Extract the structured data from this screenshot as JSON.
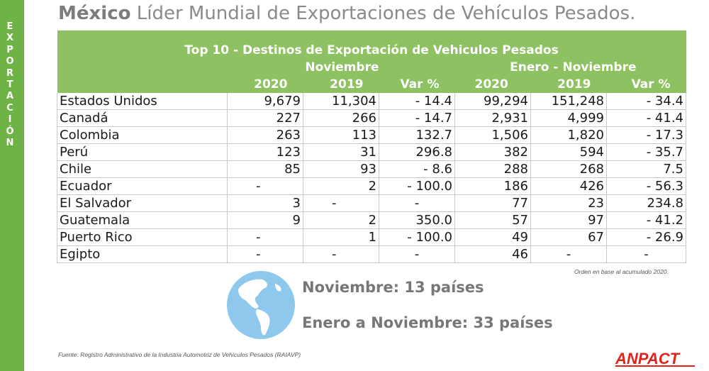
{
  "sidebar": {
    "letters": [
      "E",
      "X",
      "P",
      "O",
      "R",
      "T",
      "A",
      "C",
      "I",
      "Ó",
      "N"
    ]
  },
  "title": {
    "bold": "México",
    "rest": " Líder Mundial de Exportaciones de Vehículos Pesados."
  },
  "table": {
    "title": "Top 10 - Destinos de Exportación de Vehiculos Pesados",
    "group_nov": "Noviembre",
    "group_ytd": "Enero - Noviembre",
    "columns": [
      "2020",
      "2019",
      "Var %",
      "2020",
      "2019",
      "Var %"
    ],
    "rows": [
      [
        "Estados Unidos",
        "9,679",
        "11,304",
        "- 14.4",
        "99,294",
        "151,248",
        "- 34.4"
      ],
      [
        "Canadá",
        "227",
        "266",
        "- 14.7",
        "2,931",
        "4,999",
        "- 41.4"
      ],
      [
        "Colombia",
        "263",
        "113",
        "132.7",
        "1,506",
        "1,820",
        "- 17.3"
      ],
      [
        "Perú",
        "123",
        "31",
        "296.8",
        "382",
        "594",
        "- 35.7"
      ],
      [
        "Chile",
        "85",
        "93",
        "- 8.6",
        "288",
        "268",
        "7.5"
      ],
      [
        "Ecuador",
        "-",
        "2",
        "- 100.0",
        "186",
        "426",
        "- 56.3"
      ],
      [
        "El Salvador",
        "3",
        "-",
        "-",
        "77",
        "23",
        "234.8"
      ],
      [
        "Guatemala",
        "9",
        "2",
        "350.0",
        "57",
        "97",
        "- 41.2"
      ],
      [
        "Puerto Rico",
        "-",
        "1",
        "- 100.0",
        "49",
        "67",
        "- 26.9"
      ],
      [
        "Egipto",
        "-",
        "-",
        "-",
        "46",
        "-",
        "-"
      ]
    ]
  },
  "note": "Orden en base al acumulado 2020.",
  "stats": {
    "nov": "Noviembre: 13 países",
    "ytd": "Enero a Noviembre: 33 países"
  },
  "source": "Fuente: Registro Administrativo de la Industria Automotriz de Vehículos Pesados (RAIAVP)",
  "logo": {
    "text": "ANPACT"
  },
  "colors": {
    "green_dark": "#6fb245",
    "green_header": "#8dc162",
    "globe": "#8ec8ec",
    "logo_red": "#e2231a"
  }
}
